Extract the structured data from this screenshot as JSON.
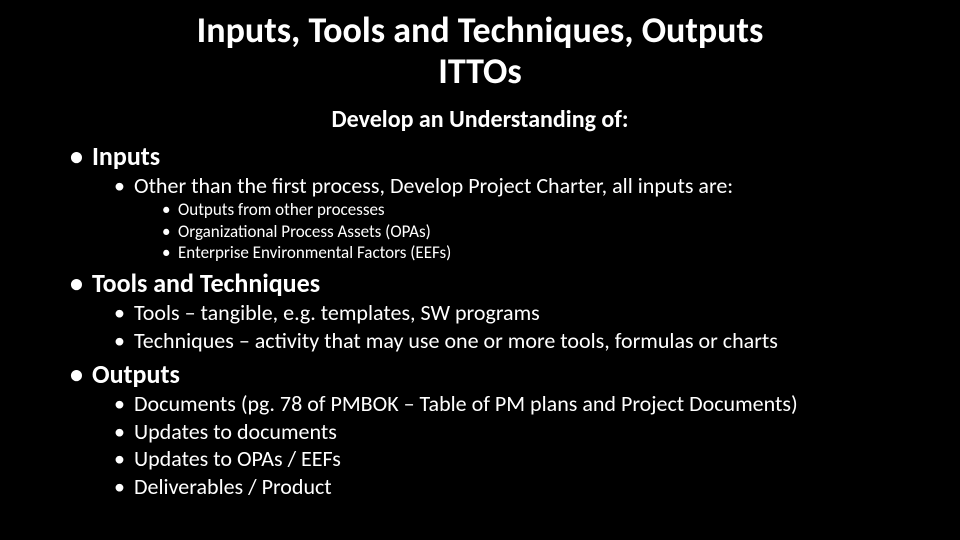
{
  "slide": {
    "title_line1": "Inputs, Tools and Techniques, Outputs",
    "title_line2": "ITTOs",
    "subtitle": "Develop an Understanding of:",
    "background_color": "#000000",
    "text_color": "#ffffff",
    "title_fontsize": 36,
    "subtitle_fontsize": 24,
    "lvl1_fontsize": 26,
    "lvl2_fontsize": 22,
    "lvl3_fontsize": 17,
    "sections": {
      "inputs": {
        "heading": "Inputs",
        "sub1": "Other than the first process, Develop Project Charter, all inputs are:",
        "items": [
          "Outputs from other processes",
          "Organizational Process Assets (OPAs)",
          "Enterprise Environmental Factors (EEFs)"
        ]
      },
      "tools": {
        "heading": "Tools and Techniques",
        "items": [
          "Tools – tangible, e.g. templates, SW programs",
          "Techniques – activity that may use one or more tools, formulas or charts"
        ]
      },
      "outputs": {
        "heading": "Outputs",
        "items": [
          "Documents (pg. 78 of PMBOK – Table of PM plans and Project Documents)",
          "Updates to documents",
          "Updates to OPAs / EEFs",
          "Deliverables / Product"
        ]
      }
    }
  }
}
